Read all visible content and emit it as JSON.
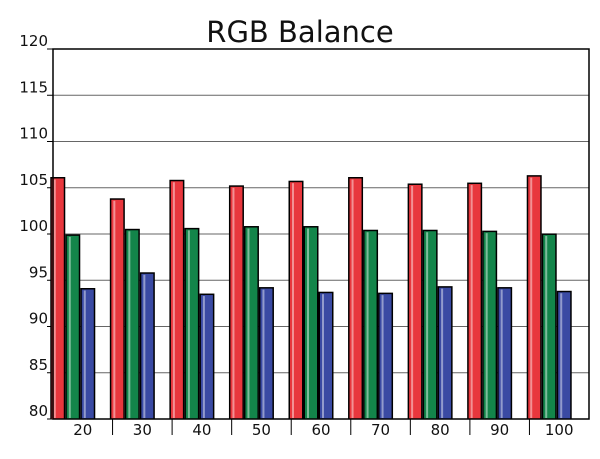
{
  "chart_data": {
    "type": "bar",
    "title": "RGB Balance",
    "xlabel": "",
    "ylabel": "",
    "categories": [
      "20",
      "30",
      "40",
      "50",
      "60",
      "70",
      "80",
      "90",
      "100"
    ],
    "series": [
      {
        "color": "#e8373d",
        "values": [
          106.0,
          103.7,
          105.7,
          105.1,
          105.6,
          106.0,
          105.3,
          105.4,
          106.2
        ]
      },
      {
        "color": "#13854a",
        "values": [
          99.8,
          100.4,
          100.5,
          100.7,
          100.7,
          100.3,
          100.3,
          100.2,
          99.9
        ]
      },
      {
        "color": "#3a4aa3",
        "values": [
          94.0,
          95.7,
          93.4,
          94.1,
          93.6,
          93.5,
          94.2,
          94.1,
          93.7
        ]
      }
    ],
    "ylim": [
      80,
      120
    ],
    "yticks": [
      "80",
      "85",
      "90",
      "95",
      "100",
      "105",
      "110",
      "115",
      "120"
    ],
    "grid": true,
    "legend": "none"
  }
}
